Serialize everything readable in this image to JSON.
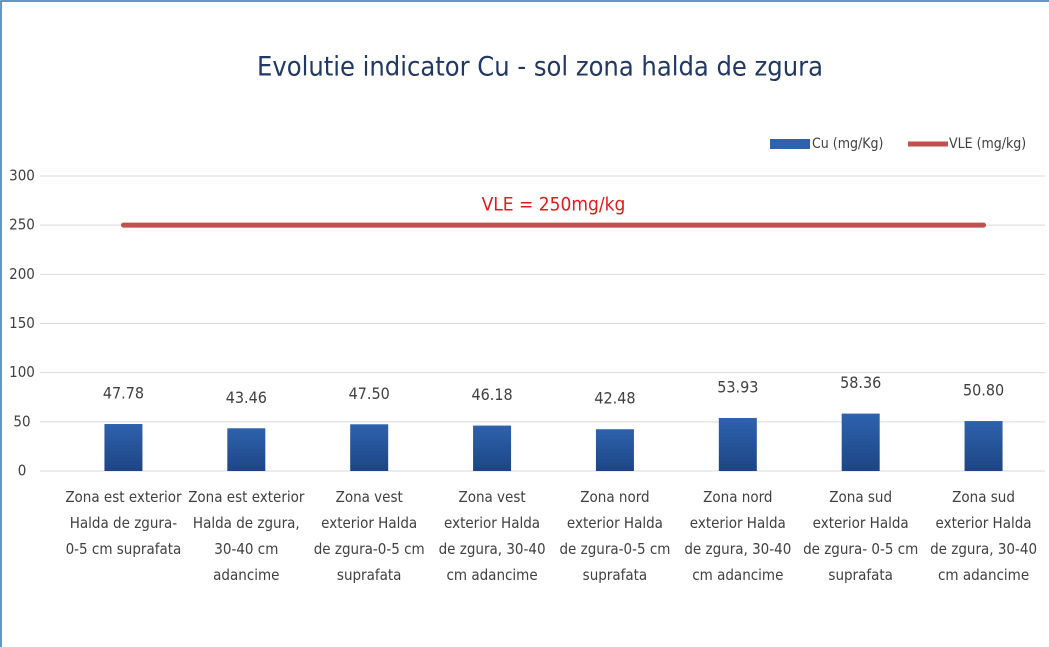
{
  "chart_data": {
    "type": "bar",
    "title": "Evolutie indicator Cu - sol zona halda de zgura",
    "categories": [
      "Zona est exterior\nHalda de zgura-\n0-5 cm suprafata",
      "Zona est  exterior\nHalda de zgura,\n30-40 cm\nadancime",
      "Zona vest\nexterior  Halda\nde zgura-0-5 cm\nsuprafata",
      "Zona vest\nexterior  Halda\nde zgura, 30-40\ncm adancime",
      "Zona nord\nexterior  Halda\nde zgura-0-5 cm\nsuprafata",
      "Zona nord\nexterior  Halda\nde zgura, 30-40\ncm adancime",
      "Zona sud\nexterior  Halda\nde zgura-  0-5 cm\nsuprafata",
      "Zona sud\nexterior  Halda\nde zgura, 30-40\ncm adancime"
    ],
    "series": [
      {
        "name": "Cu (mg/Kg)",
        "type": "bar",
        "color": "#2e62ad",
        "values": [
          47.78,
          43.46,
          47.5,
          46.18,
          42.48,
          53.93,
          58.36,
          50.8
        ],
        "value_labels": [
          "47.78",
          "43.46",
          "47.50",
          "46.18",
          "42.48",
          "53.93",
          "58.36",
          "50.80"
        ]
      },
      {
        "name": "VLE (mg/kg)",
        "type": "line",
        "color": "#c0504d",
        "values": [
          250,
          250,
          250,
          250,
          250,
          250,
          250,
          250
        ]
      }
    ],
    "annotations": [
      {
        "text": "VLE = 250mg/kg",
        "x": 3.5,
        "y": 250,
        "color": "#e31b1b"
      }
    ],
    "ylim": [
      0,
      300
    ],
    "yticks": [
      0,
      50,
      100,
      150,
      200,
      250,
      300
    ],
    "grid": true,
    "legend": "top-right"
  }
}
